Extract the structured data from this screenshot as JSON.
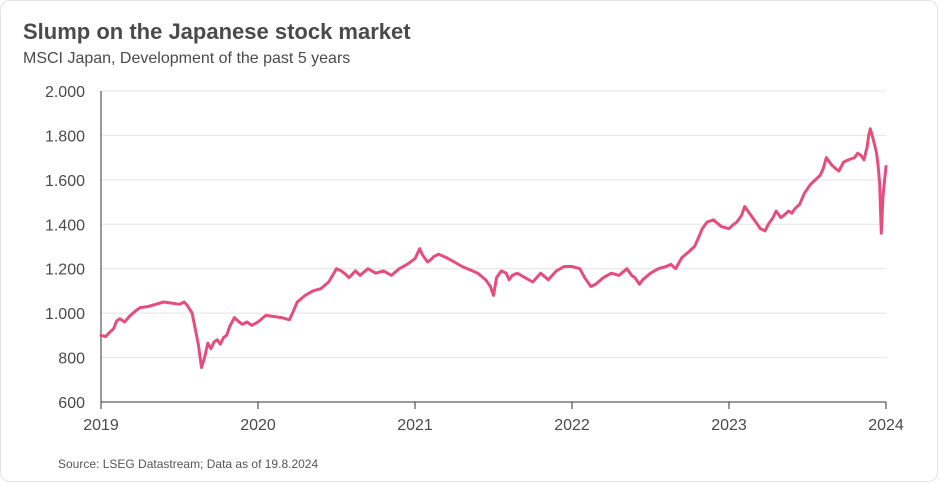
{
  "header": {
    "title": "Slump on the Japanese stock market",
    "subtitle": "MSCI Japan, Development of the past 5 years"
  },
  "footer": {
    "source": "Source: LSEG Datastream; Data as of 19.8.2024"
  },
  "colors": {
    "series": "#e64d7d",
    "grid": "#e4e4e4",
    "axis": "#333333",
    "text": "#4a4a4a"
  },
  "chart_data": {
    "type": "line",
    "title": "Slump on the Japanese stock market",
    "subtitle": "MSCI Japan, Development of the past 5 years",
    "xlabel": "",
    "ylabel": "",
    "x_ticks": [
      "2019",
      "2020",
      "2021",
      "2022",
      "2023",
      "2024"
    ],
    "x_range": [
      2019.0,
      2024.0
    ],
    "y_ticks": [
      {
        "value": 600,
        "label": "600"
      },
      {
        "value": 800,
        "label": "800"
      },
      {
        "value": 1000,
        "label": "1.000"
      },
      {
        "value": 1200,
        "label": "1.200"
      },
      {
        "value": 1400,
        "label": "1.400"
      },
      {
        "value": 1600,
        "label": "1.600"
      },
      {
        "value": 1800,
        "label": "1.800"
      },
      {
        "value": 2000,
        "label": "2.000"
      }
    ],
    "ylim": [
      600,
      2000
    ],
    "grid": "horizontal",
    "legend": "none",
    "series": [
      {
        "x": [
          2019.0,
          2019.03,
          2019.05,
          2019.08,
          2019.1,
          2019.12,
          2019.15,
          2019.18,
          2019.22,
          2019.25,
          2019.3,
          2019.35,
          2019.4,
          2019.45,
          2019.5,
          2019.53,
          2019.55,
          2019.58,
          2019.6,
          2019.62,
          2019.64,
          2019.66,
          2019.68,
          2019.7,
          2019.72,
          2019.74,
          2019.76,
          2019.78,
          2019.8,
          2019.82,
          2019.85,
          2019.88,
          2019.9,
          2019.93,
          2019.96,
          2020.0,
          2020.05,
          2020.1,
          2020.15,
          2020.2,
          2020.22,
          2020.25,
          2020.3,
          2020.35,
          2020.4,
          2020.45,
          2020.5,
          2020.53,
          2020.55,
          2020.58,
          2020.62,
          2020.65,
          2020.7,
          2020.75,
          2020.8,
          2020.85,
          2020.9,
          2020.95,
          2021.0,
          2021.03,
          2021.05,
          2021.08,
          2021.1,
          2021.12,
          2021.15,
          2021.2,
          2021.25,
          2021.3,
          2021.35,
          2021.4,
          2021.45,
          2021.48,
          2021.5,
          2021.52,
          2021.55,
          2021.58,
          2021.6,
          2021.62,
          2021.65,
          2021.7,
          2021.75,
          2021.8,
          2021.85,
          2021.9,
          2021.95,
          2022.0,
          2022.05,
          2022.08,
          2022.1,
          2022.12,
          2022.15,
          2022.2,
          2022.25,
          2022.3,
          2022.35,
          2022.38,
          2022.4,
          2022.43,
          2022.45,
          2022.5,
          2022.55,
          2022.6,
          2022.63,
          2022.66,
          2022.7,
          2022.75,
          2022.78,
          2022.8,
          2022.83,
          2022.86,
          2022.9,
          2022.95,
          2023.0,
          2023.03,
          2023.05,
          2023.08,
          2023.1,
          2023.13,
          2023.15,
          2023.18,
          2023.2,
          2023.23,
          2023.25,
          2023.28,
          2023.3,
          2023.33,
          2023.35,
          2023.38,
          2023.4,
          2023.42,
          2023.45,
          2023.48,
          2023.5,
          2023.52,
          2023.55,
          2023.58,
          2023.6,
          2023.62,
          2023.65,
          2023.68,
          2023.7,
          2023.73,
          2023.76,
          2023.8,
          2023.82,
          2023.84,
          2023.86,
          2023.88,
          2023.89,
          2023.9,
          2023.92,
          2023.94,
          2023.95,
          2023.96,
          2023.97,
          2023.98,
          2023.99,
          2024.0
        ],
        "values": [
          900,
          895,
          910,
          930,
          965,
          975,
          960,
          985,
          1010,
          1025,
          1030,
          1040,
          1050,
          1045,
          1040,
          1050,
          1035,
          1000,
          930,
          860,
          755,
          800,
          865,
          840,
          870,
          880,
          860,
          890,
          900,
          940,
          980,
          960,
          950,
          960,
          945,
          960,
          990,
          985,
          980,
          970,
          1000,
          1050,
          1080,
          1100,
          1110,
          1140,
          1200,
          1190,
          1180,
          1160,
          1190,
          1170,
          1200,
          1180,
          1190,
          1170,
          1200,
          1220,
          1245,
          1290,
          1260,
          1230,
          1240,
          1255,
          1265,
          1250,
          1230,
          1210,
          1195,
          1180,
          1150,
          1120,
          1080,
          1160,
          1190,
          1180,
          1150,
          1170,
          1180,
          1160,
          1140,
          1180,
          1150,
          1190,
          1210,
          1210,
          1200,
          1160,
          1140,
          1120,
          1130,
          1160,
          1180,
          1170,
          1200,
          1170,
          1160,
          1130,
          1150,
          1180,
          1200,
          1210,
          1220,
          1200,
          1250,
          1280,
          1300,
          1330,
          1380,
          1410,
          1420,
          1390,
          1380,
          1400,
          1410,
          1440,
          1480,
          1450,
          1430,
          1400,
          1380,
          1370,
          1400,
          1430,
          1460,
          1430,
          1440,
          1460,
          1450,
          1470,
          1490,
          1540,
          1560,
          1580,
          1600,
          1620,
          1650,
          1700,
          1670,
          1650,
          1640,
          1680,
          1690,
          1700,
          1720,
          1710,
          1690,
          1750,
          1800,
          1830,
          1780,
          1720,
          1660,
          1580,
          1360,
          1520,
          1590,
          1660
        ]
      }
    ]
  }
}
